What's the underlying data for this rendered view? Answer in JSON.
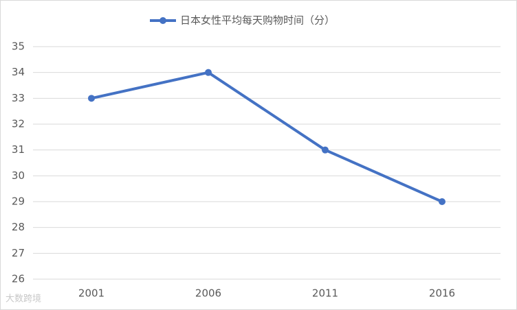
{
  "chart_data": {
    "type": "line",
    "categories": [
      "2001",
      "2006",
      "2011",
      "2016"
    ],
    "series": [
      {
        "name": "日本女性平均每天购物时间（分）",
        "color": "#4472c4",
        "values": [
          33,
          34,
          31,
          29
        ]
      }
    ],
    "ylim": [
      26,
      35
    ],
    "yticks": [
      26,
      27,
      28,
      29,
      30,
      31,
      32,
      33,
      34,
      35
    ],
    "grid": true,
    "legend": "top",
    "watermark": "大数跨境"
  }
}
